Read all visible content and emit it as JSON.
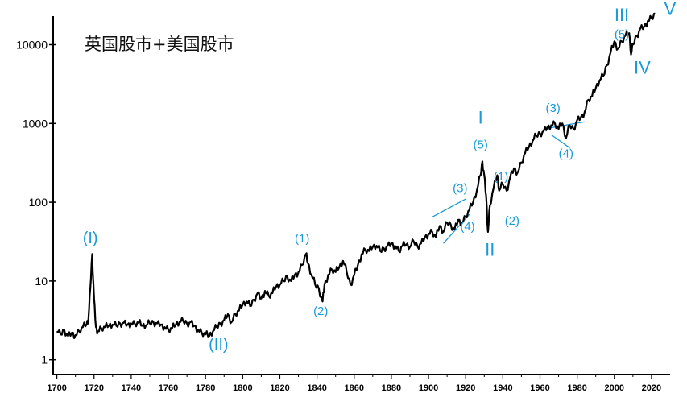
{
  "chart_data": {
    "type": "line",
    "title": "英国股市+美国股市",
    "xlabel": "",
    "ylabel": "",
    "y_scale": "log",
    "xlim": [
      1698,
      2030
    ],
    "ylim": [
      0.65,
      22000
    ],
    "grid": false,
    "x_ticks": [
      "1700",
      "1720",
      "1740",
      "1760",
      "1780",
      "1800",
      "1820",
      "1840",
      "1860",
      "1880",
      "1900",
      "1920",
      "1940",
      "1960",
      "1980",
      "2000",
      "2020"
    ],
    "y_ticks": [
      {
        "value": 1,
        "label": "1"
      },
      {
        "value": 10,
        "label": "10"
      },
      {
        "value": 100,
        "label": "100"
      },
      {
        "value": 1000,
        "label": "1000"
      },
      {
        "value": 10000,
        "label": "10000"
      }
    ],
    "series": [
      {
        "color": "#000000",
        "points": [
          [
            1700,
            2.3
          ],
          [
            1702,
            2.1
          ],
          [
            1704,
            2.4
          ],
          [
            1706,
            2.0
          ],
          [
            1708,
            2.2
          ],
          [
            1710,
            2.05
          ],
          [
            1712,
            2.3
          ],
          [
            1714,
            2.6
          ],
          [
            1716,
            2.8
          ],
          [
            1717,
            3.3
          ],
          [
            1718,
            8
          ],
          [
            1719,
            22
          ],
          [
            1720,
            6
          ],
          [
            1721,
            2.6
          ],
          [
            1722,
            2.3
          ],
          [
            1724,
            2.5
          ],
          [
            1726,
            2.6
          ],
          [
            1728,
            2.7
          ],
          [
            1730,
            2.8
          ],
          [
            1732,
            2.7
          ],
          [
            1734,
            2.9
          ],
          [
            1736,
            2.95
          ],
          [
            1738,
            2.8
          ],
          [
            1740,
            2.9
          ],
          [
            1742,
            2.85
          ],
          [
            1744,
            2.95
          ],
          [
            1746,
            2.7
          ],
          [
            1748,
            2.75
          ],
          [
            1750,
            2.9
          ],
          [
            1752,
            3.0
          ],
          [
            1754,
            2.9
          ],
          [
            1756,
            2.8
          ],
          [
            1758,
            2.6
          ],
          [
            1760,
            2.4
          ],
          [
            1762,
            2.5
          ],
          [
            1764,
            2.8
          ],
          [
            1766,
            3.0
          ],
          [
            1768,
            3.1
          ],
          [
            1770,
            2.9
          ],
          [
            1772,
            3.0
          ],
          [
            1774,
            2.7
          ],
          [
            1776,
            2.4
          ],
          [
            1778,
            2.2
          ],
          [
            1780,
            2.1
          ],
          [
            1782,
            2.0
          ],
          [
            1784,
            2.3
          ],
          [
            1786,
            2.6
          ],
          [
            1788,
            2.9
          ],
          [
            1790,
            3.2
          ],
          [
            1792,
            3.8
          ],
          [
            1794,
            3.0
          ],
          [
            1796,
            3.8
          ],
          [
            1798,
            4.2
          ],
          [
            1800,
            5.0
          ],
          [
            1802,
            5.5
          ],
          [
            1804,
            4.8
          ],
          [
            1806,
            5.8
          ],
          [
            1808,
            7.0
          ],
          [
            1810,
            6.0
          ],
          [
            1812,
            7.5
          ],
          [
            1814,
            6.5
          ],
          [
            1816,
            7.0
          ],
          [
            1818,
            8.5
          ],
          [
            1820,
            9.0
          ],
          [
            1822,
            10.0
          ],
          [
            1824,
            11.5
          ],
          [
            1826,
            10.0
          ],
          [
            1828,
            12.0
          ],
          [
            1830,
            13.0
          ],
          [
            1832,
            16.0
          ],
          [
            1834,
            22.0
          ],
          [
            1835,
            17.0
          ],
          [
            1837,
            12.0
          ],
          [
            1839,
            9.0
          ],
          [
            1841,
            8.0
          ],
          [
            1843,
            5.5
          ],
          [
            1844,
            9.0
          ],
          [
            1846,
            12.0
          ],
          [
            1848,
            14.0
          ],
          [
            1850,
            13.0
          ],
          [
            1852,
            15.0
          ],
          [
            1854,
            18.0
          ],
          [
            1856,
            13.0
          ],
          [
            1858,
            9.0
          ],
          [
            1860,
            12.0
          ],
          [
            1862,
            16.0
          ],
          [
            1864,
            22.0
          ],
          [
            1866,
            25.0
          ],
          [
            1868,
            24.0
          ],
          [
            1870,
            27.0
          ],
          [
            1872,
            28.0
          ],
          [
            1874,
            24.0
          ],
          [
            1876,
            26.0
          ],
          [
            1878,
            28.0
          ],
          [
            1880,
            30.0
          ],
          [
            1882,
            28.0
          ],
          [
            1884,
            24.0
          ],
          [
            1886,
            28.0
          ],
          [
            1888,
            29.0
          ],
          [
            1890,
            27.0
          ],
          [
            1892,
            32.0
          ],
          [
            1894,
            28.0
          ],
          [
            1896,
            30.0
          ],
          [
            1898,
            36.0
          ],
          [
            1900,
            40.0
          ],
          [
            1902,
            42.0
          ],
          [
            1904,
            36.0
          ],
          [
            1906,
            50.0
          ],
          [
            1908,
            42.0
          ],
          [
            1910,
            55.0
          ],
          [
            1912,
            52.0
          ],
          [
            1914,
            45.0
          ],
          [
            1916,
            60.0
          ],
          [
            1918,
            55.0
          ],
          [
            1920,
            65.0
          ],
          [
            1922,
            80.0
          ],
          [
            1924,
            100.0
          ],
          [
            1926,
            140.0
          ],
          [
            1928,
            220.0
          ],
          [
            1929,
            330.0
          ],
          [
            1930,
            220.0
          ],
          [
            1931,
            120.0
          ],
          [
            1932,
            42.0
          ],
          [
            1933,
            90.0
          ],
          [
            1935,
            150.0
          ],
          [
            1937,
            220.0
          ],
          [
            1938,
            140.0
          ],
          [
            1940,
            170.0
          ],
          [
            1942,
            140.0
          ],
          [
            1944,
            210.0
          ],
          [
            1946,
            270.0
          ],
          [
            1948,
            240.0
          ],
          [
            1950,
            320.0
          ],
          [
            1952,
            420.0
          ],
          [
            1954,
            500.0
          ],
          [
            1956,
            600.0
          ],
          [
            1958,
            700.0
          ],
          [
            1960,
            750.0
          ],
          [
            1962,
            800.0
          ],
          [
            1964,
            900.0
          ],
          [
            1966,
            950.0
          ],
          [
            1968,
            1000.0
          ],
          [
            1970,
            850.0
          ],
          [
            1972,
            1000.0
          ],
          [
            1974,
            650.0
          ],
          [
            1976,
            950.0
          ],
          [
            1978,
            850.0
          ],
          [
            1980,
            1100.0
          ],
          [
            1982,
            1200.0
          ],
          [
            1984,
            1400.0
          ],
          [
            1986,
            2000.0
          ],
          [
            1988,
            2200.0
          ],
          [
            1990,
            2800.0
          ],
          [
            1992,
            3500.0
          ],
          [
            1994,
            4000.0
          ],
          [
            1996,
            5500.0
          ],
          [
            1998,
            8000.0
          ],
          [
            2000,
            11000.0
          ],
          [
            2002,
            9000.0
          ],
          [
            2004,
            11000.0
          ],
          [
            2006,
            13000.0
          ],
          [
            2008,
            14000.0
          ],
          [
            2009,
            7500.0
          ],
          [
            2010,
            10000.0
          ],
          [
            2012,
            13000.0
          ],
          [
            2014,
            16000.0
          ],
          [
            2016,
            17000.0
          ],
          [
            2018,
            20000.0
          ],
          [
            2020,
            22000.0
          ],
          [
            2022,
            25000.0
          ]
        ]
      }
    ],
    "trendlines": [
      {
        "from": [
          1902,
          65
        ],
        "to": [
          1920,
          110
        ]
      },
      {
        "from": [
          1908,
          30
        ],
        "to": [
          1922,
          70
        ]
      },
      {
        "from": [
          1962,
          850
        ],
        "to": [
          1984,
          1050
        ]
      },
      {
        "from": [
          1966,
          720
        ],
        "to": [
          1976,
          490
        ]
      }
    ],
    "annotations": [
      {
        "text": "(I)",
        "x": 1718,
        "y": 30,
        "size": 20
      },
      {
        "text": "(II)",
        "x": 1787,
        "y": 1.35,
        "size": 20
      },
      {
        "text": "(1)",
        "x": 1832,
        "y": 31,
        "size": 15
      },
      {
        "text": "(2)",
        "x": 1842,
        "y": 3.7,
        "size": 15
      },
      {
        "text": "(3)",
        "x": 1917,
        "y": 135,
        "size": 15
      },
      {
        "text": "(4)",
        "x": 1921,
        "y": 44,
        "size": 15
      },
      {
        "text": "I",
        "x": 1928,
        "y": 1000,
        "size": 22
      },
      {
        "text": "(5)",
        "x": 1928,
        "y": 480,
        "size": 15
      },
      {
        "text": "(1)",
        "x": 1939,
        "y": 190,
        "size": 15
      },
      {
        "text": "(2)",
        "x": 1945,
        "y": 52,
        "size": 15
      },
      {
        "text": "II",
        "x": 1933,
        "y": 21,
        "size": 22
      },
      {
        "text": "(3)",
        "x": 1967,
        "y": 1400,
        "size": 15
      },
      {
        "text": "(4)",
        "x": 1974,
        "y": 370,
        "size": 15
      },
      {
        "text": "III",
        "x": 2004,
        "y": 20000,
        "size": 22
      },
      {
        "text": "(5)",
        "x": 2004,
        "y": 12000,
        "size": 15
      },
      {
        "text": "IV",
        "x": 2015,
        "y": 4300,
        "size": 22
      },
      {
        "text": "V",
        "x": 2030,
        "y": 24000,
        "size": 22
      }
    ],
    "colors": {
      "line": "#000000",
      "annotation": "#1a9ad6",
      "axis": "#000000"
    }
  }
}
